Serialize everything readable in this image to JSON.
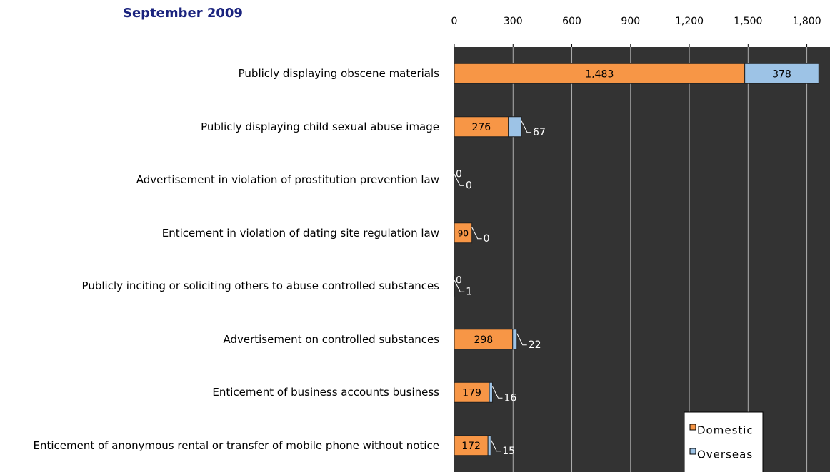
{
  "chart_data": {
    "type": "stacked-barh",
    "title": "September 2009",
    "categories": [
      "Publicly displaying obscene materials",
      "Publicly displaying child sexual abuse image",
      "Advertisement in violation of prostitution prevention law",
      "Enticement in violation of dating site regulation law",
      "Publicly inciting or soliciting others to abuse controlled substances",
      "Advertisement on controlled substances",
      "Enticement of business accounts business",
      "Enticement of anonymous rental or transfer of mobile phone without notice"
    ],
    "series": [
      {
        "name": "Domestic",
        "color": "#f79646",
        "values": [
          1483,
          276,
          0,
          90,
          0,
          298,
          179,
          172
        ],
        "value_labels": [
          "1,483",
          "276",
          "0",
          "90",
          "0",
          "298",
          "179",
          "172"
        ]
      },
      {
        "name": "Overseas",
        "color": "#9dc3e6",
        "values": [
          378,
          67,
          0,
          0,
          1,
          22,
          16,
          15
        ]
      }
    ],
    "xlim": [
      0,
      1900
    ],
    "xticks": [
      0,
      300,
      600,
      900,
      {
        "value": 1200,
        "label": "1,200"
      },
      {
        "value": 1500,
        "label": "1,500"
      },
      {
        "value": 1800,
        "label": "1,800"
      }
    ],
    "grid": true,
    "legend": "lower right"
  }
}
